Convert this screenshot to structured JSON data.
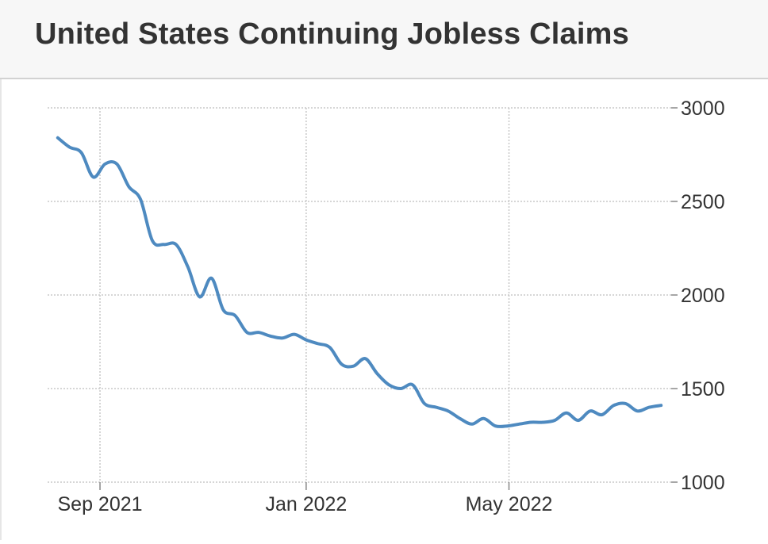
{
  "header": {
    "title": "United States Continuing Jobless Claims"
  },
  "chart_data": {
    "type": "line",
    "title": "United States Continuing Jobless Claims",
    "xlabel": "",
    "ylabel": "",
    "ylim": [
      1000,
      3000
    ],
    "yticks": [
      1000,
      1500,
      2000,
      2500,
      3000
    ],
    "xlim": [
      "2021-08-01",
      "2022-08-05"
    ],
    "xticks": [
      {
        "label": "Sep 2021",
        "date": "2021-09-01"
      },
      {
        "label": "Jan 2022",
        "date": "2022-01-01"
      },
      {
        "label": "May 2022",
        "date": "2022-05-01"
      }
    ],
    "grid": true,
    "y_axis_side": "right",
    "line_color": "#4e8ac0",
    "series": [
      {
        "x": [
          "2021-08-07",
          "2021-08-14",
          "2021-08-21",
          "2021-08-28",
          "2021-09-04",
          "2021-09-11",
          "2021-09-18",
          "2021-09-25",
          "2021-10-02",
          "2021-10-09",
          "2021-10-16",
          "2021-10-23",
          "2021-10-30",
          "2021-11-06",
          "2021-11-13",
          "2021-11-20",
          "2021-11-27",
          "2021-12-04",
          "2021-12-11",
          "2021-12-18",
          "2021-12-25",
          "2022-01-01",
          "2022-01-08",
          "2022-01-15",
          "2022-01-22",
          "2022-01-29",
          "2022-02-05",
          "2022-02-12",
          "2022-02-19",
          "2022-02-26",
          "2022-03-05",
          "2022-03-12",
          "2022-03-19",
          "2022-03-26",
          "2022-04-02",
          "2022-04-09",
          "2022-04-16",
          "2022-04-23",
          "2022-04-30",
          "2022-05-07",
          "2022-05-14",
          "2022-05-21",
          "2022-05-28",
          "2022-06-04",
          "2022-06-11",
          "2022-06-18",
          "2022-06-25",
          "2022-07-02",
          "2022-07-09",
          "2022-07-16",
          "2022-07-23",
          "2022-07-30"
        ],
        "values": [
          2840,
          2790,
          2760,
          2630,
          2700,
          2700,
          2580,
          2510,
          2290,
          2270,
          2270,
          2150,
          1990,
          2090,
          1920,
          1890,
          1800,
          1800,
          1780,
          1770,
          1790,
          1760,
          1740,
          1720,
          1630,
          1620,
          1660,
          1580,
          1520,
          1500,
          1520,
          1420,
          1400,
          1380,
          1340,
          1310,
          1340,
          1300,
          1300,
          1310,
          1320,
          1320,
          1330,
          1370,
          1330,
          1380,
          1360,
          1410,
          1420,
          1380,
          1400,
          1410
        ]
      }
    ]
  }
}
